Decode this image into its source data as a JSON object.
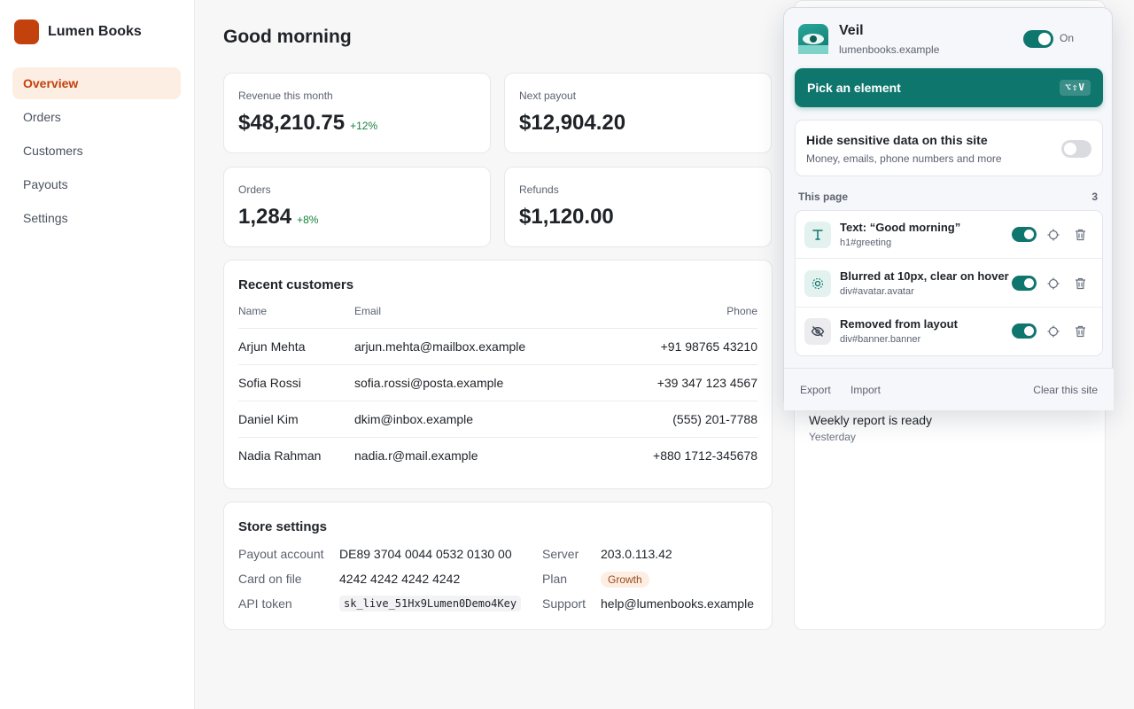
{
  "app": {
    "name": "Lumen Books",
    "nav": [
      {
        "label": "Overview"
      },
      {
        "label": "Orders"
      },
      {
        "label": "Customers"
      },
      {
        "label": "Payouts"
      },
      {
        "label": "Settings"
      }
    ],
    "active_nav": "Overview",
    "accent": "#c2410c"
  },
  "main": {
    "title": "Good morning",
    "stats": [
      {
        "label": "Revenue this month",
        "value": "$48,210.75",
        "delta": "+12%"
      },
      {
        "label": "Next payout",
        "value": "$12,904.20",
        "delta": ""
      },
      {
        "label": "Orders",
        "value": "1,284",
        "delta": "+8%"
      },
      {
        "label": "Refunds",
        "value": "$1,120.00",
        "delta": ""
      }
    ],
    "customers": {
      "title": "Recent customers",
      "columns": [
        "Name",
        "Email",
        "Phone"
      ],
      "rows": [
        {
          "name": "Arjun Mehta",
          "email": "arjun.mehta@mailbox.example",
          "phone": "+91 98765 43210"
        },
        {
          "name": "Sofia Rossi",
          "email": "sofia.rossi@posta.example",
          "phone": "+39 347 123 4567"
        },
        {
          "name": "Daniel Kim",
          "email": "dkim@inbox.example",
          "phone": "(555) 201-7788"
        },
        {
          "name": "Nadia Rahman",
          "email": "nadia.r@mail.example",
          "phone": "+880 1712-345678"
        }
      ]
    },
    "store_settings": {
      "title": "Store settings",
      "payout_account_label": "Payout account",
      "payout_account": "DE89 3704 0044 0532 0130 00",
      "card_label": "Card on file",
      "card": "4242 4242 4242 4242",
      "api_token_label": "API token",
      "api_token": "sk_live_51Hx9Lumen0Demo4Key",
      "server_label": "Server",
      "server": "203.0.113.42",
      "plan_label": "Plan",
      "plan": "Growth",
      "support_label": "Support",
      "support": "help@lumenbooks.example"
    },
    "notification": {
      "text": "Weekly report is ready",
      "time": "Yesterday"
    }
  },
  "extension": {
    "name": "Veil",
    "domain": "lumenbooks.example",
    "enabled_label": "On",
    "enabled": true,
    "pick_label": "Pick an element",
    "pick_shortcut": "⌥⇧V",
    "hide_title": "Hide sensitive data on this site",
    "hide_subtitle": "Money, emails, phone numbers and more",
    "hide_enabled": false,
    "section_label": "This page",
    "rule_count": "3",
    "rules": [
      {
        "title": "Text: “Good morning”",
        "selector": "h1#greeting",
        "icon": "text-icon",
        "enabled": true
      },
      {
        "title": "Blurred at 10px, clear on hover",
        "selector": "div#avatar.avatar",
        "icon": "blur-icon",
        "enabled": true
      },
      {
        "title": "Removed from layout",
        "selector": "div#banner.banner",
        "icon": "eye-off-icon",
        "enabled": true
      }
    ],
    "footer": {
      "export": "Export",
      "import": "Import",
      "clear": "Clear this site"
    },
    "brand_color": "#0f766e"
  }
}
